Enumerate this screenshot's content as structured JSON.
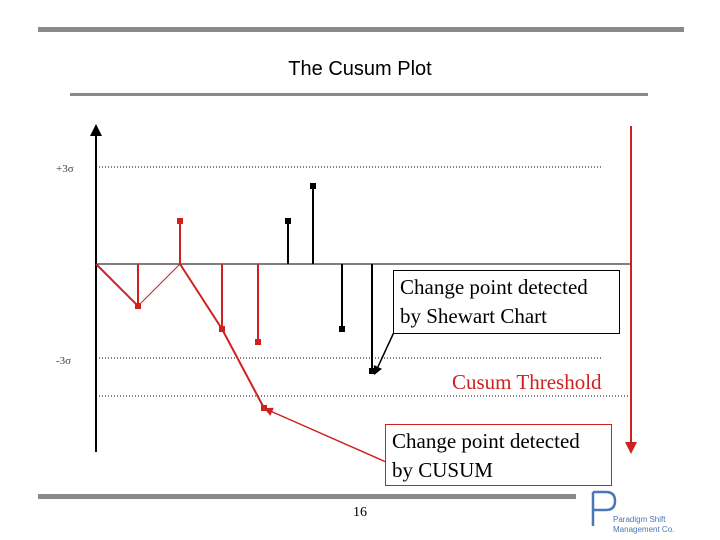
{
  "slide": {
    "title": "The Cusum Plot",
    "page_number": "16"
  },
  "diagram": {
    "upper_limit_label": "+3σ",
    "lower_limit_label": "-3σ",
    "shewart_callout": {
      "line1": "Change point detected",
      "line2": "by Shewart Chart"
    },
    "cusum_threshold_label": "Cusum Threshold",
    "cusum_callout": {
      "line1": "Change point detected",
      "line2": "by CUSUM"
    }
  },
  "logo": {
    "line1": "Paradigm Shift",
    "line2": "Management Co."
  },
  "colors": {
    "cusum": "#d02020",
    "shewart": "#000000",
    "rules": "#8a8a8a",
    "logo": "#4a78b5"
  }
}
